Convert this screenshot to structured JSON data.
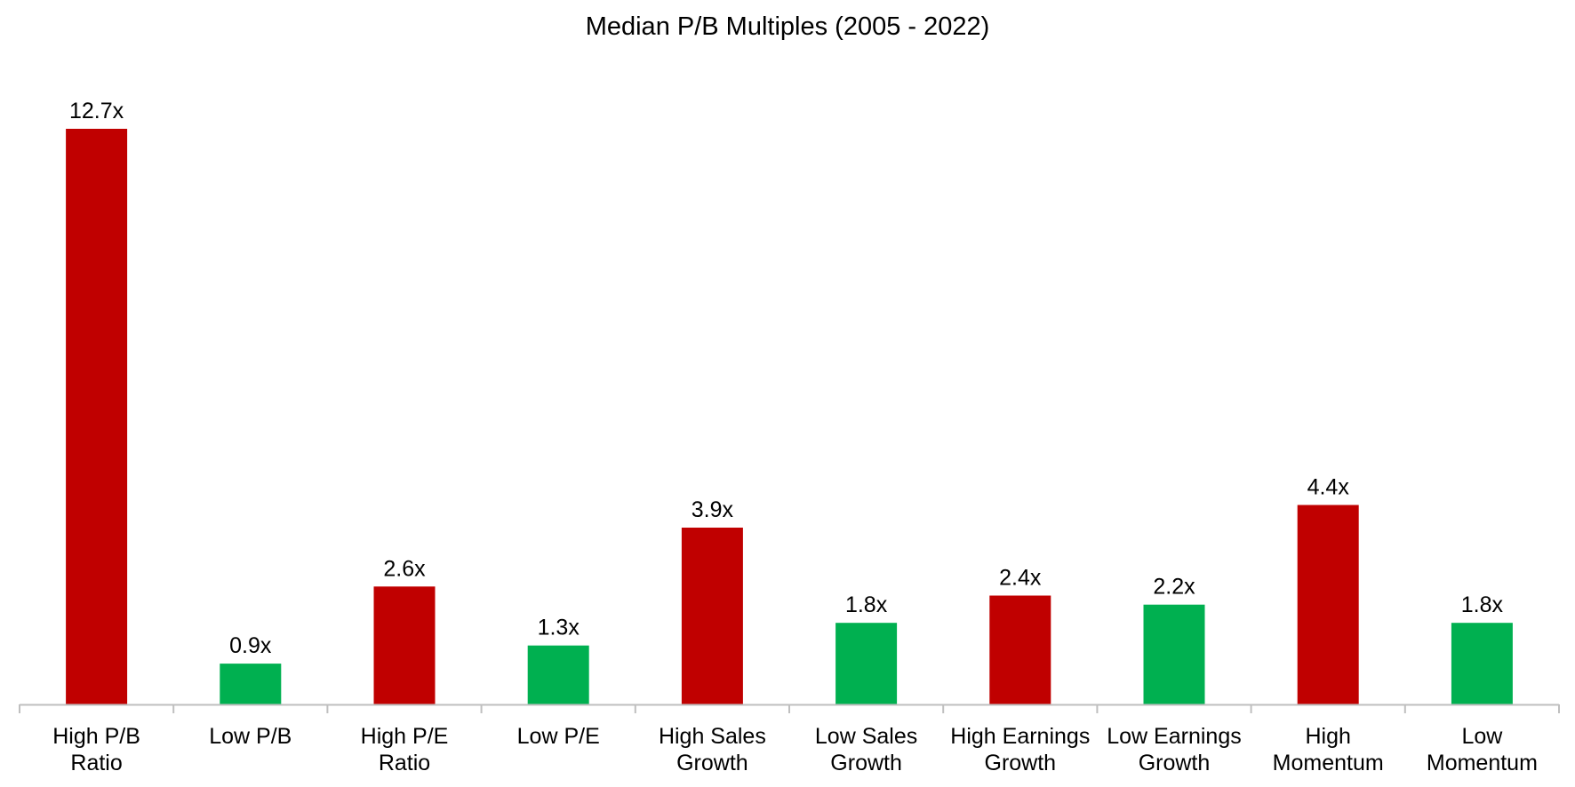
{
  "chart_data": {
    "type": "bar",
    "title": "Median P/B Multiples (2005 - 2022)",
    "xlabel": "",
    "ylabel": "",
    "ylim": [
      0,
      13
    ],
    "grid": false,
    "legend": "none",
    "categories": [
      [
        "High P/B",
        "Ratio"
      ],
      [
        "Low P/B"
      ],
      [
        "High P/E",
        "Ratio"
      ],
      [
        "Low P/E"
      ],
      [
        "High Sales",
        "Growth"
      ],
      [
        "Low Sales",
        "Growth"
      ],
      [
        "High Earnings",
        "Growth"
      ],
      [
        "Low Earnings",
        "Growth"
      ],
      [
        "High",
        "Momentum"
      ],
      [
        "Low",
        "Momentum"
      ]
    ],
    "values": [
      12.7,
      0.9,
      2.6,
      1.3,
      3.9,
      1.8,
      2.4,
      2.2,
      4.4,
      1.8
    ],
    "data_labels": [
      "12.7x",
      "0.9x",
      "2.6x",
      "1.3x",
      "3.9x",
      "1.8x",
      "2.4x",
      "2.2x",
      "4.4x",
      "1.8x"
    ],
    "bar_colors": [
      "#C00000",
      "#00B050",
      "#C00000",
      "#00B050",
      "#C00000",
      "#00B050",
      "#C00000",
      "#00B050",
      "#C00000",
      "#00B050"
    ],
    "axis_color": "#BFBFBF"
  }
}
